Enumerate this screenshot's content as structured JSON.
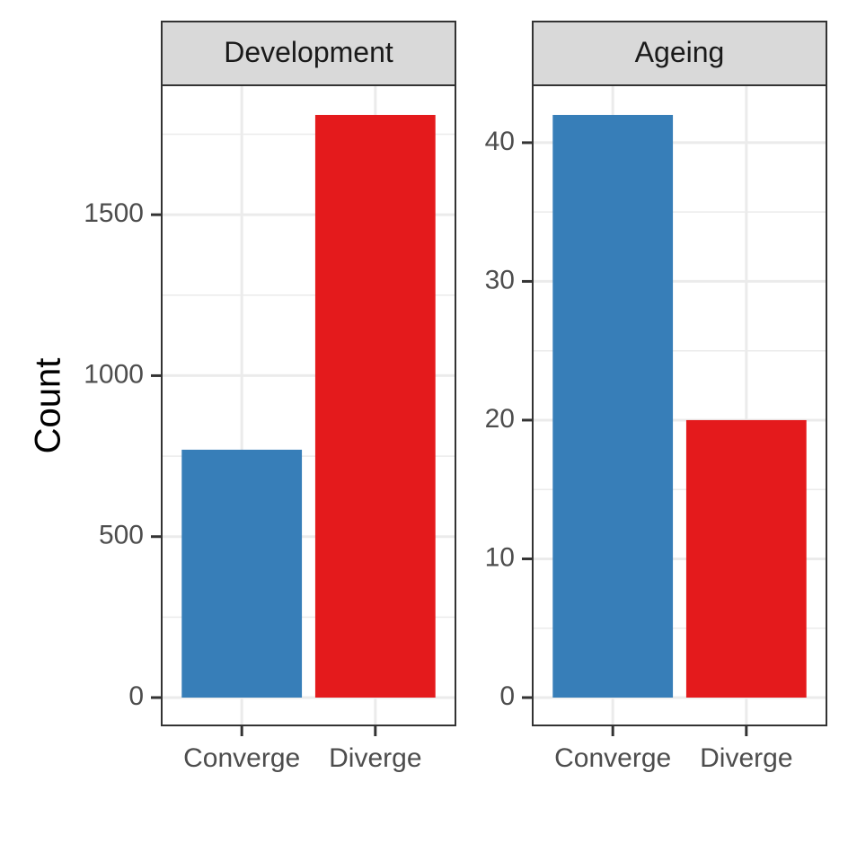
{
  "chart_data": {
    "type": "bar",
    "layout": "faceted",
    "ylabel": "Count",
    "xlabel": "",
    "grid": true,
    "colors": {
      "Converge": "#377EB8",
      "Diverge": "#E41A1C"
    },
    "panels": [
      {
        "title": "Development",
        "categories": [
          "Converge",
          "Diverge"
        ],
        "values": [
          770,
          1810
        ],
        "ylim": [
          0,
          1900
        ],
        "yticks": [
          0,
          500,
          1000,
          1500
        ]
      },
      {
        "title": "Ageing",
        "categories": [
          "Converge",
          "Diverge"
        ],
        "values": [
          42,
          20
        ],
        "ylim": [
          0,
          44
        ],
        "yticks": [
          0,
          10,
          20,
          30,
          40
        ]
      }
    ]
  }
}
